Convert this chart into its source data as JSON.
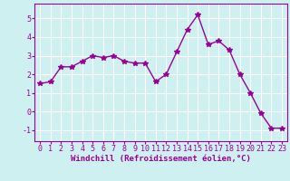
{
  "x": [
    0,
    1,
    2,
    3,
    4,
    5,
    6,
    7,
    8,
    9,
    10,
    11,
    12,
    13,
    14,
    15,
    16,
    17,
    18,
    19,
    20,
    21,
    22,
    23
  ],
  "y": [
    1.5,
    1.6,
    2.4,
    2.4,
    2.7,
    3.0,
    2.9,
    3.0,
    2.7,
    2.6,
    2.6,
    1.6,
    2.0,
    3.2,
    4.4,
    5.2,
    3.6,
    3.8,
    3.3,
    2.0,
    1.0,
    -0.1,
    -0.9,
    -0.9
  ],
  "line_color": "#990099",
  "marker": "*",
  "marker_size": 4,
  "xlabel": "Windchill (Refroidissement éolien,°C)",
  "xlabel_fontsize": 6.5,
  "xlim": [
    -0.5,
    23.5
  ],
  "ylim": [
    -1.6,
    5.8
  ],
  "yticks": [
    -1,
    0,
    1,
    2,
    3,
    4,
    5
  ],
  "xticks": [
    0,
    1,
    2,
    3,
    4,
    5,
    6,
    7,
    8,
    9,
    10,
    11,
    12,
    13,
    14,
    15,
    16,
    17,
    18,
    19,
    20,
    21,
    22,
    23
  ],
  "tick_fontsize": 6.0,
  "bg_color": "#cff0f0",
  "grid_color": "#ffffff",
  "line_width": 1.0,
  "fig_bg": "#cff0f0",
  "spine_color": "#9900aa"
}
